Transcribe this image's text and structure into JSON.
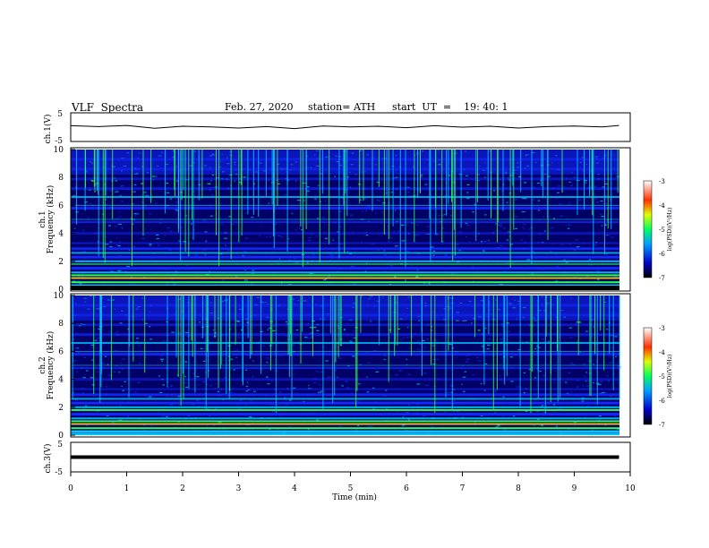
{
  "header": {
    "title": "VLF  Spectra",
    "date": "Feb. 27, 2020",
    "station": "station= ATH",
    "start": "start  UT  =    19: 40: 1"
  },
  "chart_data": [
    {
      "type": "line",
      "panel": "ch1-waveform",
      "ylabel": "ch.1(V)",
      "ylim": [
        -5,
        5
      ],
      "yticks": [
        "5",
        "-5"
      ],
      "x": [
        0,
        0.5,
        1,
        1.5,
        2,
        2.5,
        3,
        3.5,
        4,
        4.5,
        5,
        5.5,
        6,
        6.5,
        7,
        7.5,
        8,
        8.5,
        9,
        9.5,
        9.8
      ],
      "values": [
        0.5,
        0.2,
        0.6,
        -0.4,
        0.3,
        0.1,
        -0.3,
        0.2,
        -0.5,
        0.4,
        0.1,
        0.3,
        -0.2,
        0.5,
        0.0,
        0.3,
        -0.3,
        0.2,
        0.4,
        0.1,
        0.6
      ]
    },
    {
      "type": "heatmap",
      "panel": "ch1-spectrogram",
      "ylabel": "ch.1",
      "ylabel2": "Frequency (kHz)",
      "ylim": [
        0,
        10
      ],
      "yticks": [
        "0",
        "2",
        "4",
        "6",
        "8",
        "10"
      ],
      "colorbar": {
        "label": "log(PSD)(V²/Hz)",
        "range": [
          -7,
          -3
        ],
        "ticks": [
          "-3",
          "-4",
          "-5",
          "-6",
          "-7"
        ]
      }
    },
    {
      "type": "heatmap",
      "panel": "ch2-spectrogram",
      "ylabel": "ch.2",
      "ylabel2": "Frequency (kHz)",
      "ylim": [
        0,
        10
      ],
      "yticks": [
        "0",
        "2",
        "4",
        "6",
        "8",
        "10"
      ],
      "colorbar": {
        "label": "log(PSD)(V²/Hz)",
        "range": [
          -7,
          -3
        ],
        "ticks": [
          "-3",
          "-4",
          "-5",
          "-6",
          "-7"
        ]
      }
    },
    {
      "type": "line",
      "panel": "ch3-waveform",
      "ylabel": "ch.3(V)",
      "ylim": [
        -5,
        5
      ],
      "yticks": [
        "5",
        "-5"
      ],
      "x": [
        0,
        9.8
      ],
      "values": [
        0,
        0
      ]
    }
  ],
  "xaxis": {
    "label": "Time  (min)",
    "ticks": [
      "0",
      "1",
      "2",
      "3",
      "4",
      "5",
      "6",
      "7",
      "8",
      "9",
      "10"
    ],
    "range": [
      0,
      10
    ]
  },
  "colors": {
    "background": "#000066",
    "band_blue": "#1428ff",
    "band_cyan": "#00c8ff",
    "band_green": "#2aff4a",
    "band_yellow": "#ffd200",
    "band_red": "#ff2a00"
  }
}
